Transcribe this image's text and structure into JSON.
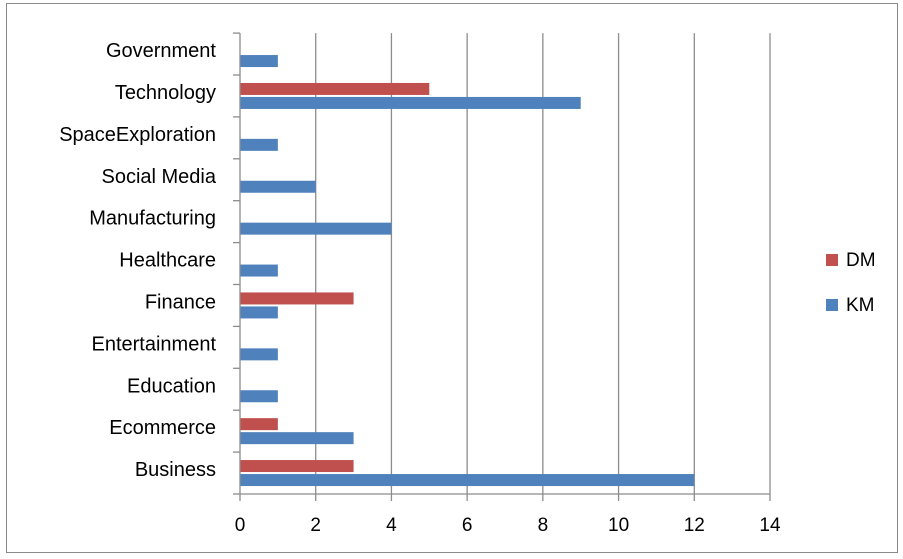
{
  "chart_data": {
    "type": "bar",
    "orientation": "horizontal",
    "categories": [
      "Business",
      "Ecommerce",
      "Education",
      "Entertainment",
      "Finance",
      "Healthcare",
      "Manufacturing",
      "Social Media",
      "SpaceExploration",
      "Technology",
      "Government"
    ],
    "series": [
      {
        "name": "DM",
        "color": "#C0504D",
        "values": [
          3,
          1,
          0,
          0,
          3,
          0,
          0,
          0,
          0,
          5,
          0
        ]
      },
      {
        "name": "KM",
        "color": "#4F81BD",
        "values": [
          12,
          3,
          1,
          1,
          1,
          1,
          4,
          2,
          1,
          9,
          1
        ]
      }
    ],
    "xlim": [
      0,
      14
    ],
    "xticks": [
      0,
      2,
      4,
      6,
      8,
      10,
      12,
      14
    ],
    "title": "",
    "xlabel": "",
    "ylabel": "",
    "grid": "vertical",
    "legend_position": "right"
  }
}
